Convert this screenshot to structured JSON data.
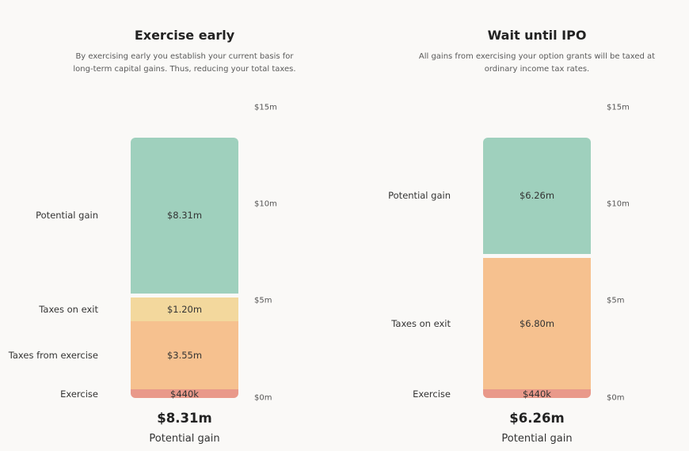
{
  "chart_data": [
    {
      "type": "bar",
      "stacked": true,
      "title": "Exercise early",
      "subtitle": "By exercising early you establish your current basis for long-term capital gains. Thus, reducing your total taxes.",
      "yticks": [
        "$0m",
        "$5m",
        "$10m",
        "$15m"
      ],
      "ylim": [
        0,
        15
      ],
      "series": [
        {
          "name": "Exercise",
          "value": 0.44,
          "label": "$440k",
          "color": "#e9998a"
        },
        {
          "name": "Taxes from exercise",
          "value": 3.55,
          "label": "$3.55m",
          "color": "#f6c18f"
        },
        {
          "name": "Taxes on exit",
          "value": 1.2,
          "label": "$1.20m",
          "color": "#f3d89d"
        },
        {
          "name": "Potential gain",
          "value": 8.31,
          "label": "$8.31m",
          "color": "#9fd0bd"
        }
      ],
      "total_value": "$8.31m",
      "total_label": "Potential gain"
    },
    {
      "type": "bar",
      "stacked": true,
      "title": "Wait until IPO",
      "subtitle": "All gains from exercising your option grants will be taxed at ordinary income tax rates.",
      "yticks": [
        "$0m",
        "$5m",
        "$10m",
        "$15m"
      ],
      "ylim": [
        0,
        15
      ],
      "series": [
        {
          "name": "Exercise",
          "value": 0.44,
          "label": "$440k",
          "color": "#e9998a"
        },
        {
          "name": "Taxes on exit",
          "value": 6.8,
          "label": "$6.80m",
          "color": "#f6c18f"
        },
        {
          "name": "Potential gain",
          "value": 6.26,
          "label": "$6.26m",
          "color": "#9fd0bd"
        }
      ],
      "total_value": "$6.26m",
      "total_label": "Potential gain"
    }
  ]
}
